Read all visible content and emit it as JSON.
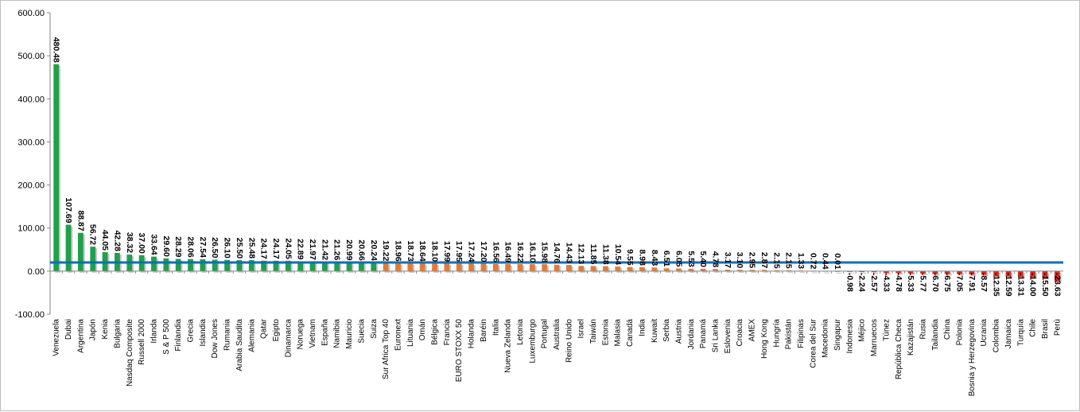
{
  "chart_data": {
    "type": "bar",
    "title": "",
    "xlabel": "",
    "ylabel": "",
    "ylim": [
      -100,
      600
    ],
    "yticks": [
      "-100.00",
      "0.00",
      "100.00",
      "200.00",
      "300.00",
      "400.00",
      "500.00",
      "600.00"
    ],
    "grid": false,
    "legend": "none",
    "reference_line": {
      "value": 20,
      "color": "#0070c0"
    },
    "colors": {
      "high": "#1fa04a",
      "mid": "#e87a2e",
      "negative": "#e8261c",
      "shadow": "#c8c8c8"
    },
    "categories": [
      "Venezuela",
      "Dubai",
      "Argentina",
      "Japón",
      "Kenia",
      "Bulgaria",
      "Nasdaq Composite",
      "Russell 2000",
      "Irlanda",
      "S & P 500",
      "Finlandia",
      "Grecia",
      "Islandia",
      "Dow Jones",
      "Rumania",
      "Arabia Saudita",
      "Alemania",
      "Qatar",
      "Egipto",
      "Dinamarca",
      "Noruega",
      "Vietnam",
      "España",
      "Namibia",
      "Mauricio",
      "Suecia",
      "Suiza",
      "Sur Africa Top 40",
      "Euronext",
      "Lituania",
      "Omán",
      "Bélgica",
      "Francia",
      "EURO STOXX 50",
      "Holanda",
      "Baréin",
      "Italia",
      "Nueva Zelanda",
      "Letonia",
      "Luxemburgo",
      "Portugal",
      "Australia",
      "Reino Unido",
      "Israel",
      "Taiwán",
      "Estonia",
      "Malasia",
      "Canadá",
      "India",
      "Kuwait",
      "Serbia",
      "Austria",
      "Jordania",
      "Panamá",
      "Sri Lanka",
      "Eslovenia",
      "Croacia",
      "AMEX",
      "Hong Kong",
      "Hungría",
      "Pakistán",
      "Filipinas",
      "Corea del Sur",
      "Macedonia",
      "Singapur",
      "Indonesia",
      "Méjico",
      "Marruecos",
      "Túnez",
      "República Checa",
      "Kazajistán",
      "Rusia",
      "Tailandia",
      "China",
      "Polonia",
      "Bosnia y Herzegovina",
      "Ucrania",
      "Colombia",
      "Jamaica",
      "Turquía",
      "Chile",
      "Brasil",
      "Perú"
    ],
    "values": [
      480.48,
      107.69,
      88.87,
      56.72,
      44.05,
      42.28,
      38.32,
      37.0,
      33.64,
      29.6,
      28.29,
      28.06,
      27.54,
      26.5,
      26.1,
      25.5,
      25.48,
      24.17,
      24.17,
      24.05,
      22.89,
      21.97,
      21.42,
      21.26,
      20.99,
      20.66,
      20.24,
      19.22,
      18.96,
      18.73,
      18.64,
      18.1,
      17.99,
      17.95,
      17.24,
      17.2,
      16.56,
      16.49,
      16.22,
      16.1,
      15.98,
      14.76,
      14.43,
      12.13,
      11.85,
      11.38,
      10.54,
      9.55,
      8.98,
      8.43,
      6.51,
      6.05,
      5.53,
      5.4,
      4.78,
      3.17,
      3.1,
      2.95,
      2.87,
      2.15,
      2.15,
      1.33,
      0.72,
      0.44,
      0.01,
      -0.98,
      -2.24,
      -2.57,
      -4.33,
      -4.78,
      -5.33,
      -5.77,
      -6.7,
      -6.75,
      -7.05,
      -7.91,
      -8.57,
      -12.35,
      -12.59,
      -13.31,
      -14.0,
      -15.5,
      -23.63
    ],
    "value_labels": [
      "480.48",
      "107.69",
      "88.87",
      "56.72",
      "44.05",
      "42.28",
      "38.32",
      "37.00",
      "33.64",
      "29.60",
      "28.29",
      "28.06",
      "27.54",
      "26.50",
      "26.10",
      "25.50",
      "25.48",
      "24.17",
      "24.17",
      "24.05",
      "22.89",
      "21.97",
      "21.42",
      "21.26",
      "20.99",
      "20.66",
      "20.24",
      "19.22",
      "18.96",
      "18.73",
      "18.64",
      "18.10",
      "17.99",
      "17.95",
      "17.24",
      "17.20",
      "16.56",
      "16.49",
      "16.22",
      "16.10",
      "15.98",
      "14.76",
      "14.43",
      "12.13",
      "11.85",
      "11.38",
      "10.54",
      "9.55",
      "8.98",
      "8.43",
      "6.51",
      "6.05",
      "5.53",
      "5.40",
      "4.78",
      "3.17",
      "3.10",
      "2.95",
      "2.87",
      "2.15",
      "2.15",
      "1.33",
      "0.72",
      "0.44",
      "0.01",
      "-0.98",
      "-2.24",
      "-2.57",
      "-4.33",
      "-4.78",
      "-5.33",
      "-5.77",
      "-6.70",
      "-6.75",
      "-7.05",
      "-7.91",
      "-8.57",
      "-12.35",
      "-12.59",
      "-13.31",
      "-14.00",
      "-15.50",
      "-23.63"
    ]
  }
}
